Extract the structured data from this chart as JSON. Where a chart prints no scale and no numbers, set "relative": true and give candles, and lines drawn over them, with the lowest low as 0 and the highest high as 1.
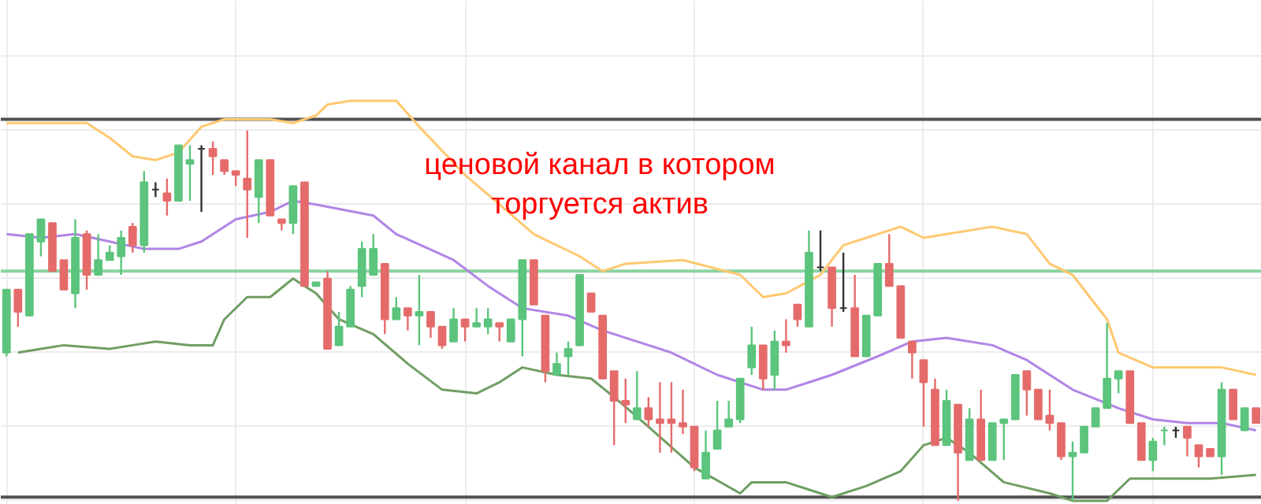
{
  "chart_data": {
    "type": "candlestick",
    "relative": true,
    "grid": true,
    "categories": [
      null,
      null,
      null,
      null,
      null,
      null,
      null,
      null,
      null,
      null,
      null,
      null,
      null,
      null,
      null,
      null,
      null,
      null,
      null,
      null,
      null,
      null,
      null,
      null,
      null,
      null,
      null,
      null,
      null,
      null,
      null,
      null,
      null,
      null,
      null,
      null,
      null,
      null,
      null,
      null,
      null,
      null,
      null,
      null,
      null,
      null,
      null,
      null,
      null,
      null,
      null,
      null,
      null,
      null,
      null,
      null,
      null,
      null,
      null,
      null,
      null,
      null,
      null,
      null,
      null,
      null,
      null,
      null,
      null,
      null,
      null,
      null,
      null,
      null,
      null,
      null,
      null,
      null,
      null,
      null,
      null,
      null,
      null,
      null,
      null,
      null,
      null,
      null,
      null,
      null,
      null,
      null,
      null,
      null,
      null,
      null,
      null,
      null,
      null,
      null,
      null,
      null,
      null,
      null,
      null,
      null,
      null,
      null,
      null,
      null
    ],
    "ohlc": [
      [
        0.4,
        0.57,
        0.39,
        0.57
      ],
      [
        0.57,
        0.57,
        0.47,
        0.51
      ],
      [
        0.5,
        0.72,
        0.5,
        0.72
      ],
      [
        0.7,
        0.76,
        0.66,
        0.76
      ],
      [
        0.75,
        0.75,
        0.62,
        0.62
      ],
      [
        0.65,
        0.65,
        0.57,
        0.57
      ],
      [
        0.56,
        0.76,
        0.52,
        0.71
      ],
      [
        0.72,
        0.73,
        0.57,
        0.61
      ],
      [
        0.61,
        0.72,
        0.61,
        0.65
      ],
      [
        0.65,
        0.69,
        0.65,
        0.67
      ],
      [
        0.66,
        0.73,
        0.61,
        0.71
      ],
      [
        0.74,
        0.75,
        0.67,
        0.69
      ],
      [
        0.69,
        0.89,
        0.67,
        0.86
      ],
      [
        0.84,
        0.86,
        0.82,
        0.84
      ],
      [
        0.83,
        0.87,
        0.77,
        0.81
      ],
      [
        0.81,
        0.96,
        0.81,
        0.96
      ],
      [
        0.91,
        0.96,
        0.81,
        0.92
      ],
      [
        0.95,
        0.96,
        0.78,
        0.95
      ],
      [
        0.95,
        0.97,
        0.88,
        0.93
      ],
      [
        0.92,
        0.92,
        0.88,
        0.89
      ],
      [
        0.89,
        0.89,
        0.85,
        0.88
      ],
      [
        0.87,
        1.0,
        0.71,
        0.84
      ],
      [
        0.82,
        0.92,
        0.75,
        0.92
      ],
      [
        0.92,
        0.92,
        0.77,
        0.77
      ],
      [
        0.76,
        0.76,
        0.73,
        0.75
      ],
      [
        0.75,
        0.85,
        0.72,
        0.85
      ],
      [
        0.86,
        0.86,
        0.58,
        0.58
      ],
      [
        0.58,
        0.59,
        0.58,
        0.59
      ],
      [
        0.6,
        0.62,
        0.41,
        0.41
      ],
      [
        0.42,
        0.51,
        0.42,
        0.47
      ],
      [
        0.47,
        0.58,
        0.47,
        0.57
      ],
      [
        0.58,
        0.7,
        0.55,
        0.68
      ],
      [
        0.61,
        0.72,
        0.61,
        0.68
      ],
      [
        0.64,
        0.64,
        0.45,
        0.49
      ],
      [
        0.49,
        0.55,
        0.49,
        0.52
      ],
      [
        0.52,
        0.52,
        0.46,
        0.5
      ],
      [
        0.5,
        0.61,
        0.42,
        0.51
      ],
      [
        0.51,
        0.51,
        0.44,
        0.47
      ],
      [
        0.47,
        0.47,
        0.41,
        0.42
      ],
      [
        0.43,
        0.52,
        0.43,
        0.49
      ],
      [
        0.49,
        0.49,
        0.43,
        0.47
      ],
      [
        0.47,
        0.52,
        0.47,
        0.48
      ],
      [
        0.47,
        0.52,
        0.45,
        0.49
      ],
      [
        0.48,
        0.48,
        0.43,
        0.47
      ],
      [
        0.43,
        0.49,
        0.43,
        0.49
      ],
      [
        0.49,
        0.65,
        0.39,
        0.65
      ],
      [
        0.65,
        0.65,
        0.53,
        0.53
      ],
      [
        0.5,
        0.5,
        0.32,
        0.35
      ],
      [
        0.34,
        0.4,
        0.34,
        0.37
      ],
      [
        0.39,
        0.43,
        0.34,
        0.41
      ],
      [
        0.42,
        0.61,
        0.42,
        0.61
      ],
      [
        0.56,
        0.56,
        0.51,
        0.51
      ],
      [
        0.5,
        0.5,
        0.33,
        0.33
      ],
      [
        0.35,
        0.35,
        0.15,
        0.27
      ],
      [
        0.27,
        0.33,
        0.21,
        0.26
      ],
      [
        0.22,
        0.35,
        0.22,
        0.25
      ],
      [
        0.25,
        0.28,
        0.2,
        0.22
      ],
      [
        0.22,
        0.32,
        0.13,
        0.21
      ],
      [
        0.22,
        0.32,
        0.13,
        0.21
      ],
      [
        0.21,
        0.3,
        0.18,
        0.2
      ],
      [
        0.2,
        0.2,
        0.08,
        0.09
      ],
      [
        0.06,
        0.19,
        0.06,
        0.13
      ],
      [
        0.14,
        0.27,
        0.14,
        0.19
      ],
      [
        0.2,
        0.27,
        0.2,
        0.22
      ],
      [
        0.22,
        0.33,
        0.21,
        0.33
      ],
      [
        0.36,
        0.47,
        0.34,
        0.42
      ],
      [
        0.42,
        0.42,
        0.3,
        0.33
      ],
      [
        0.34,
        0.46,
        0.3,
        0.43
      ],
      [
        0.43,
        0.49,
        0.4,
        0.42
      ],
      [
        0.53,
        0.53,
        0.47,
        0.49
      ],
      [
        0.47,
        0.73,
        0.47,
        0.67
      ],
      [
        0.63,
        0.73,
        0.62,
        0.63
      ],
      [
        0.63,
        0.63,
        0.47,
        0.52
      ],
      [
        0.52,
        0.67,
        0.51,
        0.52
      ],
      [
        0.52,
        0.61,
        0.39,
        0.39
      ],
      [
        0.39,
        0.5,
        0.39,
        0.5
      ],
      [
        0.5,
        0.64,
        0.5,
        0.64
      ],
      [
        0.64,
        0.72,
        0.58,
        0.58
      ],
      [
        0.58,
        0.58,
        0.44,
        0.44
      ],
      [
        0.43,
        0.43,
        0.33,
        0.4
      ],
      [
        0.38,
        0.38,
        0.2,
        0.32
      ],
      [
        0.3,
        0.33,
        0.15,
        0.15
      ],
      [
        0.15,
        0.3,
        0.15,
        0.27
      ],
      [
        0.26,
        0.26,
        0.0,
        0.13
      ],
      [
        0.11,
        0.25,
        0.11,
        0.22
      ],
      [
        0.22,
        0.3,
        0.11,
        0.11
      ],
      [
        0.11,
        0.21,
        0.11,
        0.21
      ],
      [
        0.21,
        0.22,
        0.11,
        0.22
      ],
      [
        0.22,
        0.34,
        0.22,
        0.34
      ],
      [
        0.35,
        0.35,
        0.23,
        0.3
      ],
      [
        0.3,
        0.3,
        0.22,
        0.22
      ],
      [
        0.23,
        0.3,
        0.19,
        0.21
      ],
      [
        0.21,
        0.21,
        0.11,
        0.12
      ],
      [
        0.12,
        0.16,
        0.0,
        0.13
      ],
      [
        0.13,
        0.2,
        0.13,
        0.2
      ],
      [
        0.2,
        0.25,
        0.2,
        0.25
      ],
      [
        0.25,
        0.48,
        0.25,
        0.33
      ],
      [
        0.33,
        0.35,
        0.29,
        0.35
      ],
      [
        0.35,
        0.35,
        0.21,
        0.21
      ],
      [
        0.21,
        0.21,
        0.11,
        0.11
      ],
      [
        0.11,
        0.17,
        0.08,
        0.16
      ],
      [
        0.19,
        0.2,
        0.15,
        0.19
      ],
      [
        0.19,
        0.2,
        0.17,
        0.19
      ],
      [
        0.2,
        0.2,
        0.12,
        0.17
      ],
      [
        0.15,
        0.15,
        0.09,
        0.12
      ],
      [
        0.14,
        0.14,
        0.12,
        0.12
      ],
      [
        0.12,
        0.32,
        0.07,
        0.3
      ],
      [
        0.3,
        0.3,
        0.22,
        0.22
      ],
      [
        0.19,
        0.25,
        0.19,
        0.25
      ],
      [
        0.25,
        0.25,
        0.21,
        0.21
      ]
    ],
    "colors": [
      "#5cc47c",
      "#e56b6b",
      "#5cc47c",
      "#5cc47c",
      "#e56b6b",
      "#e56b6b",
      "#5cc47c",
      "#e56b6b",
      "#5cc47c",
      "#5cc47c",
      "#5cc47c",
      "#e56b6b",
      "#5cc47c",
      "#333333",
      "#e56b6b",
      "#5cc47c",
      "#5cc47c",
      "#333333",
      "#e56b6b",
      "#e56b6b",
      "#e56b6b",
      "#e56b6b",
      "#5cc47c",
      "#e56b6b",
      "#e56b6b",
      "#5cc47c",
      "#e56b6b",
      "#5cc47c",
      "#e56b6b",
      "#5cc47c",
      "#5cc47c",
      "#5cc47c",
      "#5cc47c",
      "#e56b6b",
      "#5cc47c",
      "#e56b6b",
      "#5cc47c",
      "#e56b6b",
      "#e56b6b",
      "#5cc47c",
      "#e56b6b",
      "#5cc47c",
      "#5cc47c",
      "#e56b6b",
      "#5cc47c",
      "#5cc47c",
      "#e56b6b",
      "#e56b6b",
      "#5cc47c",
      "#5cc47c",
      "#5cc47c",
      "#e56b6b",
      "#e56b6b",
      "#e56b6b",
      "#e56b6b",
      "#5cc47c",
      "#e56b6b",
      "#e56b6b",
      "#e56b6b",
      "#e56b6b",
      "#e56b6b",
      "#5cc47c",
      "#5cc47c",
      "#5cc47c",
      "#5cc47c",
      "#5cc47c",
      "#e56b6b",
      "#5cc47c",
      "#e56b6b",
      "#e56b6b",
      "#5cc47c",
      "#333333",
      "#e56b6b",
      "#333333",
      "#e56b6b",
      "#5cc47c",
      "#5cc47c",
      "#e56b6b",
      "#e56b6b",
      "#e56b6b",
      "#e56b6b",
      "#e56b6b",
      "#5cc47c",
      "#e56b6b",
      "#5cc47c",
      "#e56b6b",
      "#5cc47c",
      "#5cc47c",
      "#5cc47c",
      "#e56b6b",
      "#e56b6b",
      "#e56b6b",
      "#e56b6b",
      "#5cc47c",
      "#5cc47c",
      "#5cc47c",
      "#5cc47c",
      "#5cc47c",
      "#e56b6b",
      "#e56b6b",
      "#5cc47c",
      "#5cc47c",
      "#333333",
      "#e56b6b",
      "#e56b6b",
      "#e56b6b",
      "#5cc47c",
      "#e56b6b",
      "#5cc47c",
      "#e56b6b"
    ],
    "series": [
      {
        "type": "line",
        "color": "#ffc870",
        "values": [
          1.02,
          null,
          null,
          null,
          null,
          null,
          null,
          1.02,
          null,
          0.98,
          null,
          0.93,
          null,
          0.92,
          null,
          0.94,
          null,
          1.01,
          null,
          1.03,
          null,
          null,
          null,
          1.03,
          null,
          1.02,
          null,
          1.04,
          1.07,
          null,
          1.08,
          null,
          null,
          null,
          1.08,
          null,
          1.01,
          null,
          null,
          null,
          0.88,
          null,
          null,
          0.8,
          null,
          null,
          0.72,
          null,
          null,
          null,
          0.66,
          null,
          0.62,
          null,
          0.64,
          null,
          null,
          null,
          null,
          0.65,
          null,
          null,
          null,
          null,
          0.61,
          null,
          0.55,
          null,
          0.56,
          null,
          null,
          0.61,
          null,
          0.69,
          null,
          0.71,
          null,
          null,
          0.74,
          null,
          0.71,
          null,
          0.72,
          null,
          null,
          null,
          0.74,
          null,
          null,
          0.72,
          null,
          0.64,
          null,
          0.61,
          null,
          null,
          0.49,
          0.4,
          null,
          null,
          0.36,
          null,
          null,
          0.36,
          null,
          null,
          0.36,
          null,
          null,
          0.34
        ]
      },
      {
        "type": "line",
        "color": "#b085e6",
        "values": [
          0.72,
          null,
          null,
          0.71,
          null,
          null,
          0.72,
          null,
          null,
          0.7,
          null,
          null,
          0.68,
          null,
          null,
          0.68,
          null,
          0.7,
          null,
          null,
          0.76,
          null,
          null,
          0.78,
          null,
          0.81,
          null,
          0.8,
          null,
          null,
          null,
          null,
          0.77,
          null,
          0.72,
          null,
          null,
          null,
          null,
          0.65,
          null,
          null,
          0.58,
          null,
          null,
          0.52,
          null,
          null,
          null,
          0.5,
          null,
          null,
          0.46,
          null,
          null,
          null,
          0.42,
          null,
          0.4,
          null,
          null,
          null,
          0.34,
          null,
          null,
          null,
          0.3,
          null,
          0.3,
          null,
          null,
          null,
          0.34,
          null,
          null,
          null,
          0.39,
          null,
          null,
          0.43,
          null,
          null,
          0.44,
          null,
          null,
          null,
          0.42,
          null,
          null,
          0.38,
          null,
          null,
          null,
          0.3,
          null,
          null,
          null,
          0.25,
          null,
          null,
          0.22,
          null,
          null,
          0.21,
          null,
          null,
          0.21,
          null,
          null,
          0.19
        ]
      },
      {
        "type": "line",
        "color": "#6f9e62",
        "values": [
          null,
          0.4,
          null,
          0.41,
          null,
          0.42,
          null,
          null,
          null,
          0.41,
          null,
          0.42,
          null,
          0.43,
          null,
          null,
          0.42,
          null,
          0.42,
          0.49,
          null,
          0.55,
          null,
          0.55,
          null,
          0.6,
          0.58,
          0.56,
          null,
          0.49,
          null,
          null,
          0.45,
          null,
          null,
          0.37,
          null,
          null,
          0.3,
          null,
          null,
          0.29,
          null,
          0.32,
          null,
          0.36,
          null,
          null,
          0.34,
          null,
          null,
          0.33,
          null,
          0.28,
          null,
          null,
          0.2,
          null,
          null,
          null,
          0.09,
          null,
          null,
          null,
          0.02,
          0.05,
          null,
          null,
          0.05,
          null,
          null,
          null,
          0.01,
          null,
          null,
          0.04,
          null,
          null,
          0.08,
          null,
          0.15,
          null,
          0.17,
          null,
          0.13,
          null,
          null,
          0.05,
          null,
          null,
          null,
          0.02,
          null,
          0.0,
          null,
          null,
          0.0,
          null,
          0.06,
          null,
          null,
          0.06,
          null,
          null,
          null,
          0.06,
          null,
          null,
          null,
          0.07
        ]
      }
    ],
    "ref_lines": [
      {
        "axis": "y",
        "value": 1.03,
        "color": "#333333"
      },
      {
        "axis": "y",
        "value": 0.62,
        "color": "#74cc8e"
      },
      {
        "axis": "y",
        "value": 0.01,
        "color": "#333333"
      }
    ],
    "annotations": [
      "ценовой канал в котором\nторгуется актив"
    ]
  }
}
